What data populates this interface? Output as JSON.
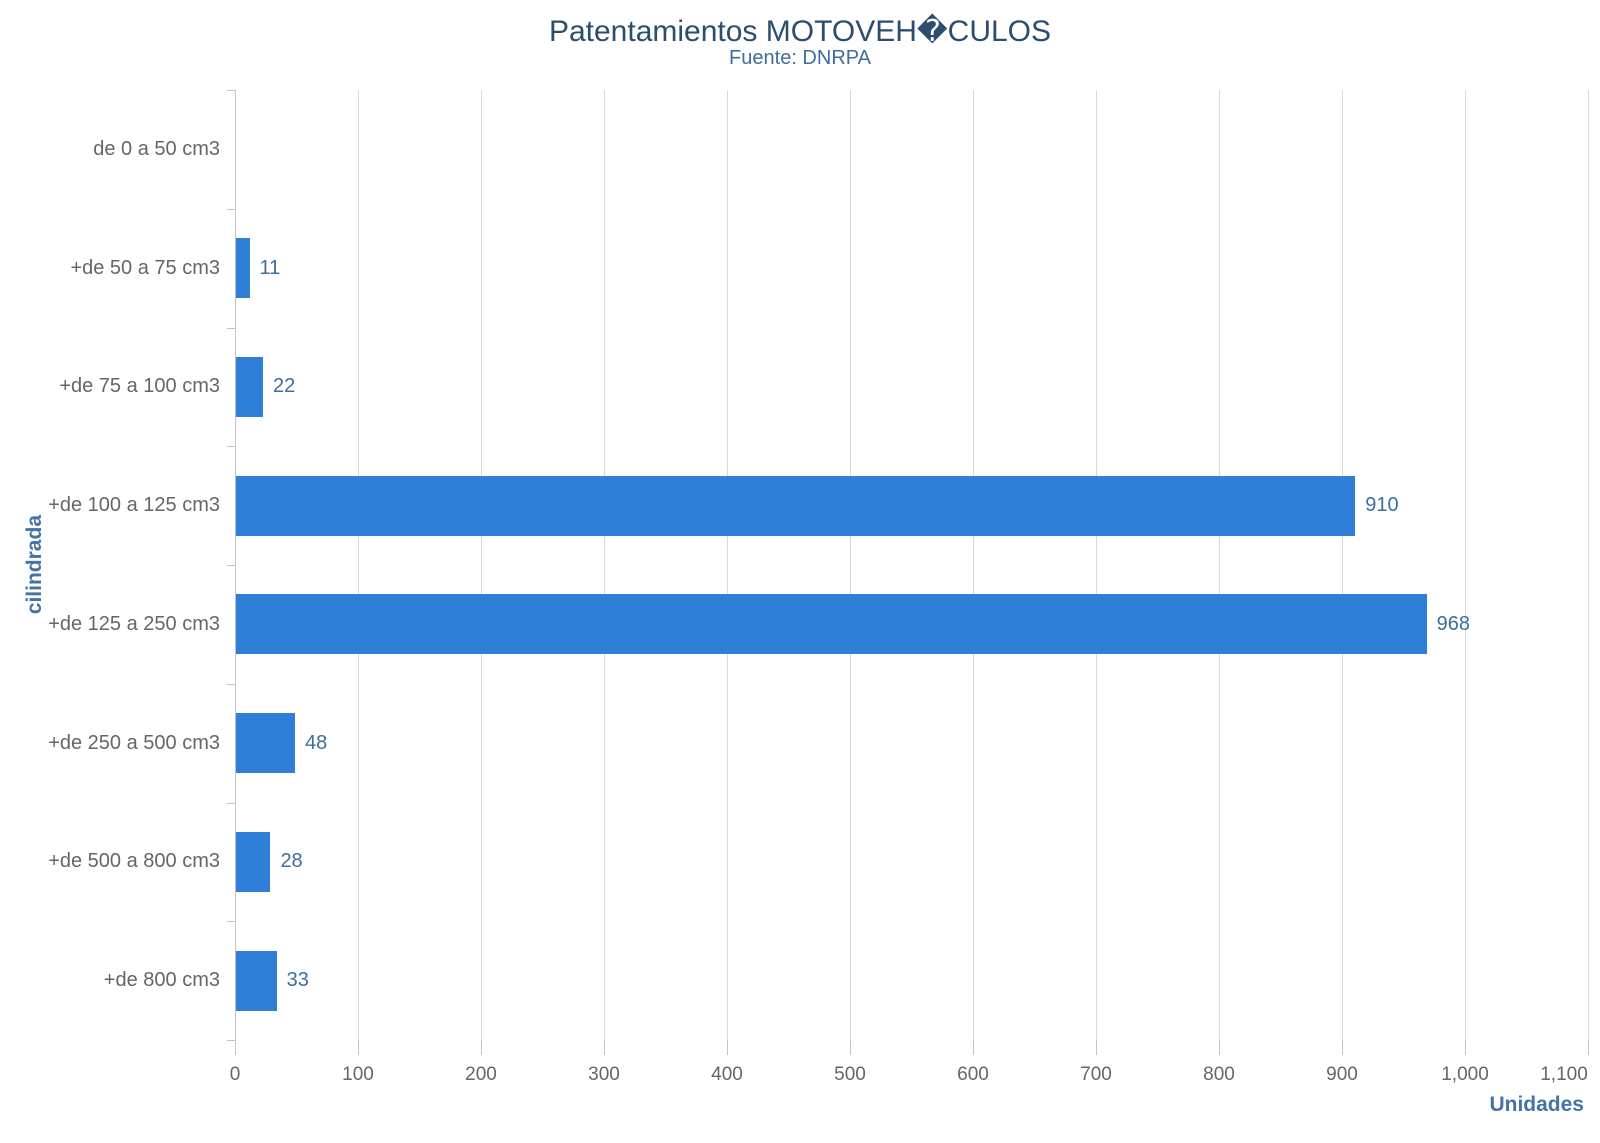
{
  "chart_data": {
    "type": "bar",
    "orientation": "horizontal",
    "title": "Patentamientos MOTOVEH�CULOS",
    "subtitle": "Fuente: DNRPA",
    "xlabel": "Unidades",
    "ylabel": "cilindrada",
    "categories": [
      "de 0 a 50 cm3",
      "+de 50 a 75 cm3",
      "+de 75 a 100 cm3",
      "+de 100 a 125 cm3",
      "+de 125 a 250 cm3",
      "+de 250 a 500 cm3",
      "+de 500 a 800 cm3",
      "+de 800 cm3"
    ],
    "values": [
      0,
      11,
      22,
      910,
      968,
      48,
      28,
      33
    ],
    "xlim": [
      0,
      1100
    ],
    "xticks": {
      "values": [
        0,
        100,
        200,
        300,
        400,
        500,
        600,
        700,
        800,
        900,
        1000,
        1100
      ],
      "labels": [
        "0",
        "100",
        "200",
        "300",
        "400",
        "500",
        "600",
        "700",
        "800",
        "900",
        "1,000",
        "1,100"
      ]
    },
    "grid": "vertical-gridlines-only",
    "legend": "none",
    "zero_value_labels_hidden": true,
    "colors": {
      "bar": "#2f7ed8",
      "title": "#2c4d6e",
      "subtitle": "#3f6e9e",
      "axis_title": "#4572a7",
      "data_label": "#3c6e9e",
      "category_label": "#666666",
      "tick_label": "#666666",
      "gridline": "#d8d8d8",
      "axis_line": "#c0c4cc",
      "background": "#ffffff"
    }
  }
}
